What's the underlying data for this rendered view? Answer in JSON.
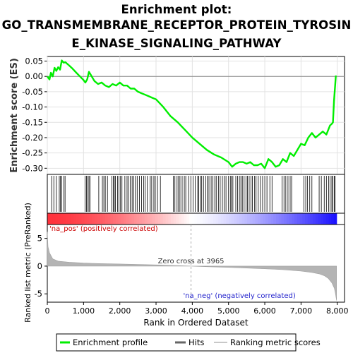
{
  "chart_data": {
    "type": "line",
    "title_lines": [
      "Enrichment plot:",
      "GO_TRANSMEMBRANE_RECEPTOR_PROTEIN_TYROSIN",
      "E_KINASE_SIGNALING_PATHWAY"
    ],
    "top_panel": {
      "ylabel": "Enrichment score (ES)",
      "ylim": [
        -0.32,
        0.065
      ],
      "yticks": [
        0.05,
        0.0,
        -0.05,
        -0.1,
        -0.15,
        -0.2,
        -0.25,
        -0.3
      ],
      "ytick_labels": [
        "0.05",
        "0.00",
        "-0.05",
        "-0.10",
        "-0.15",
        "-0.20",
        "-0.25",
        "-0.30"
      ],
      "grid": true,
      "series": [
        {
          "name": "Enrichment profile",
          "color": "#00ee00",
          "x": [
            0,
            60,
            100,
            150,
            200,
            250,
            300,
            350,
            400,
            450,
            500,
            600,
            700,
            800,
            900,
            1000,
            1050,
            1100,
            1150,
            1200,
            1300,
            1400,
            1500,
            1600,
            1700,
            1800,
            1900,
            2000,
            2100,
            2200,
            2300,
            2400,
            2500,
            2600,
            2700,
            2800,
            2900,
            3000,
            3200,
            3400,
            3600,
            3800,
            4000,
            4200,
            4400,
            4600,
            4800,
            5000,
            5100,
            5200,
            5300,
            5400,
            5500,
            5600,
            5700,
            5800,
            5900,
            6000,
            6100,
            6200,
            6300,
            6400,
            6500,
            6600,
            6700,
            6800,
            6900,
            7000,
            7100,
            7200,
            7300,
            7400,
            7500,
            7600,
            7700,
            7800,
            7850,
            7880,
            7910,
            7940,
            7960
          ],
          "values": [
            0.0,
            -0.01,
            0.012,
            0.0,
            0.028,
            0.018,
            0.03,
            0.022,
            0.052,
            0.045,
            0.046,
            0.036,
            0.025,
            0.012,
            0.0,
            -0.012,
            -0.02,
            -0.01,
            0.015,
            0.005,
            -0.015,
            -0.025,
            -0.02,
            -0.03,
            -0.035,
            -0.025,
            -0.03,
            -0.02,
            -0.03,
            -0.03,
            -0.04,
            -0.04,
            -0.05,
            -0.055,
            -0.06,
            -0.065,
            -0.07,
            -0.075,
            -0.1,
            -0.13,
            -0.15,
            -0.175,
            -0.2,
            -0.22,
            -0.24,
            -0.255,
            -0.265,
            -0.28,
            -0.295,
            -0.285,
            -0.28,
            -0.28,
            -0.285,
            -0.28,
            -0.29,
            -0.29,
            -0.285,
            -0.3,
            -0.27,
            -0.28,
            -0.295,
            -0.29,
            -0.27,
            -0.28,
            -0.25,
            -0.26,
            -0.24,
            -0.22,
            -0.225,
            -0.2,
            -0.185,
            -0.2,
            -0.19,
            -0.18,
            -0.19,
            -0.16,
            -0.155,
            -0.15,
            -0.08,
            -0.03,
            0.003
          ]
        }
      ]
    },
    "hits_panel": {
      "bar_colormap": "red-to-blue (positive to negative rank metric)",
      "hits_x": [
        120,
        180,
        250,
        330,
        360,
        400,
        460,
        490,
        1040,
        1080,
        1120,
        1150,
        1180,
        1420,
        1520,
        1560,
        1600,
        1660,
        1780,
        1820,
        1850,
        1880,
        1940,
        1980,
        2020,
        2060,
        2140,
        2200,
        2240,
        2290,
        2340,
        2380,
        2430,
        2480,
        2540,
        2600,
        2660,
        2700,
        2760,
        2840,
        2880,
        2940,
        2980,
        3040,
        3120,
        3480,
        3520,
        3580,
        3620,
        3660,
        3720,
        3780,
        3820,
        3900,
        3960,
        4020,
        4080,
        4150,
        4180,
        4230,
        4260,
        4310,
        4370,
        4410,
        4460,
        4520,
        4570,
        4620,
        4660,
        4720,
        4770,
        4830,
        4880,
        4930,
        5000,
        5050,
        5080,
        5120,
        5200,
        5250,
        5300,
        5340,
        5380,
        5430,
        5480,
        5520,
        5570,
        5620,
        5660,
        5720,
        5760,
        5820,
        5880,
        5940,
        6000,
        6060,
        6140,
        6200,
        6480,
        6530,
        6580,
        6640,
        6700,
        6740,
        7080,
        7130,
        7180,
        7240,
        7300,
        7500,
        7560,
        7640,
        7700,
        7760,
        7800,
        7850,
        7880,
        7920,
        7940
      ]
    },
    "rank_panel": {
      "ylabel": "Ranked list metric (PreRanked)",
      "ylim": [
        -6.5,
        7.5
      ],
      "yticks": [
        5,
        0,
        -5
      ],
      "ytick_labels": [
        "5",
        "0",
        "-5"
      ],
      "metric_x": [
        0,
        20,
        60,
        150,
        300,
        600,
        1000,
        1500,
        2000,
        2500,
        3000,
        3500,
        3965,
        4500,
        5000,
        5500,
        6000,
        6500,
        7000,
        7300,
        7500,
        7650,
        7750,
        7850,
        7920,
        7950,
        7980
      ],
      "metric_values": [
        6.2,
        3.5,
        2.4,
        1.3,
        0.9,
        0.7,
        0.55,
        0.45,
        0.38,
        0.3,
        0.22,
        0.12,
        0.0,
        -0.12,
        -0.22,
        -0.35,
        -0.48,
        -0.65,
        -0.9,
        -1.15,
        -1.4,
        -1.75,
        -2.2,
        -3.0,
        -4.0,
        -5.0,
        -6.2
      ],
      "zero_cross": 3965,
      "zero_cross_label": "Zero cross at 3965",
      "pos_label": "'na_pos' (positively correlated)",
      "neg_label": "'na_neg' (negatively correlated)"
    },
    "xlabel": "Rank in Ordered Dataset",
    "xlim": [
      0,
      8200
    ],
    "xticks": [
      0,
      1000,
      2000,
      3000,
      4000,
      5000,
      6000,
      7000,
      8000
    ],
    "xtick_labels": [
      "0",
      "1,000",
      "2,000",
      "3,000",
      "4,000",
      "5,000",
      "6,000",
      "7,000",
      "8,000"
    ],
    "legend": {
      "placement": "bottom",
      "items": [
        {
          "label": "Enrichment profile",
          "color": "#00ee00"
        },
        {
          "label": "Hits",
          "color": "#666666"
        },
        {
          "label": "Ranking metric scores",
          "color": "#c8c8c8"
        }
      ]
    }
  }
}
